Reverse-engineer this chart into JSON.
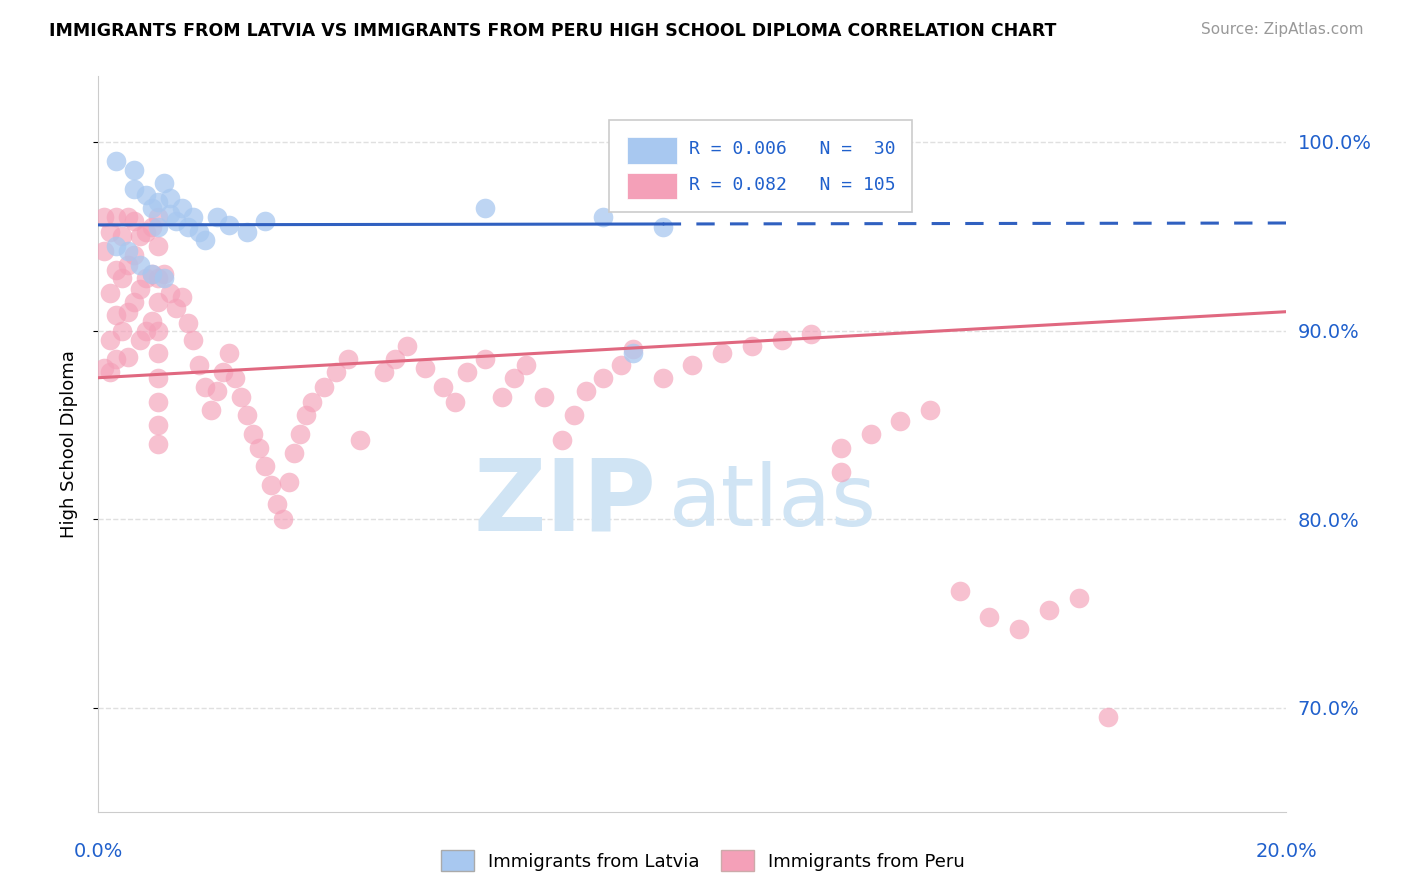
{
  "title": "IMMIGRANTS FROM LATVIA VS IMMIGRANTS FROM PERU HIGH SCHOOL DIPLOMA CORRELATION CHART",
  "source": "Source: ZipAtlas.com",
  "ylabel": "High School Diploma",
  "ytick_labels": [
    "100.0%",
    "90.0%",
    "80.0%",
    "70.0%"
  ],
  "ytick_values": [
    1.0,
    0.9,
    0.8,
    0.7
  ],
  "xlim": [
    0.0,
    0.2
  ],
  "ylim": [
    0.645,
    1.035
  ],
  "color_latvia": "#a8c8f0",
  "color_peru": "#f4a0b8",
  "trendline_latvia_solid_color": "#3060c0",
  "trendline_latvia_dash_color": "#3060c0",
  "trendline_peru_color": "#e06880",
  "watermark_zip": "ZIP",
  "watermark_atlas": "atlas",
  "watermark_color": "#d0e4f4",
  "legend_box_color": "#eeeeee",
  "legend_border_color": "#cccccc",
  "r_n_color": "#2060cc",
  "grid_color": "#e0e0e0"
}
